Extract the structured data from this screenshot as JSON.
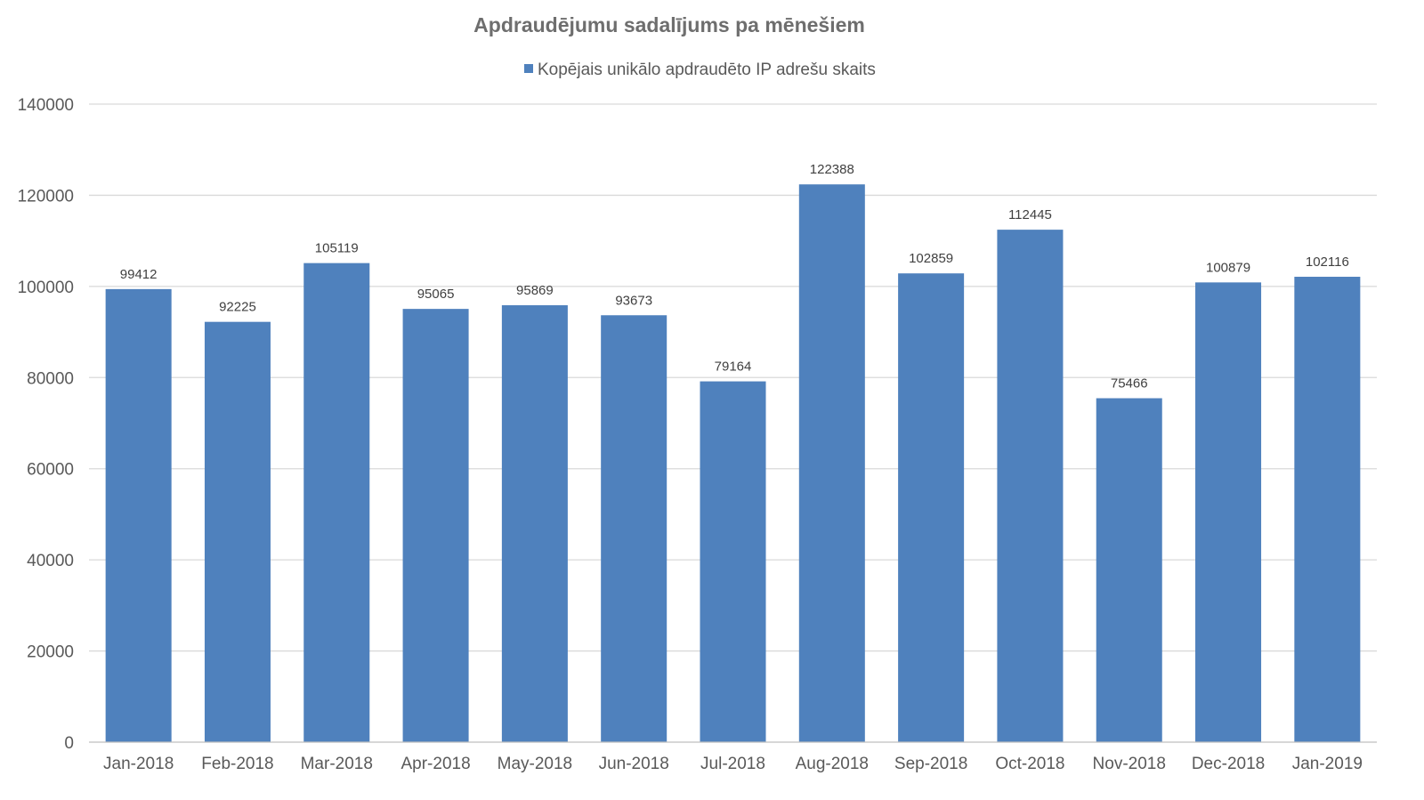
{
  "chart_data": {
    "type": "bar",
    "title": "Apdraudējumu sadalījums pa mēnešiem",
    "xlabel": "",
    "ylabel": "",
    "legend_position": "top",
    "grid": true,
    "ylim": [
      0,
      140000
    ],
    "yticks": [
      0,
      20000,
      40000,
      60000,
      80000,
      100000,
      120000,
      140000
    ],
    "categories": [
      "Jan-2018",
      "Feb-2018",
      "Mar-2018",
      "Apr-2018",
      "May-2018",
      "Jun-2018",
      "Jul-2018",
      "Aug-2018",
      "Sep-2018",
      "Oct-2018",
      "Nov-2018",
      "Dec-2018",
      "Jan-2019"
    ],
    "series": [
      {
        "name": "Kopējais unikālo apdraudēto IP adrešu skaits",
        "color": "#4f81bd",
        "values": [
          99412,
          92225,
          105119,
          95065,
          95869,
          93673,
          79164,
          122388,
          102859,
          112445,
          75466,
          100879,
          102116
        ]
      }
    ]
  }
}
